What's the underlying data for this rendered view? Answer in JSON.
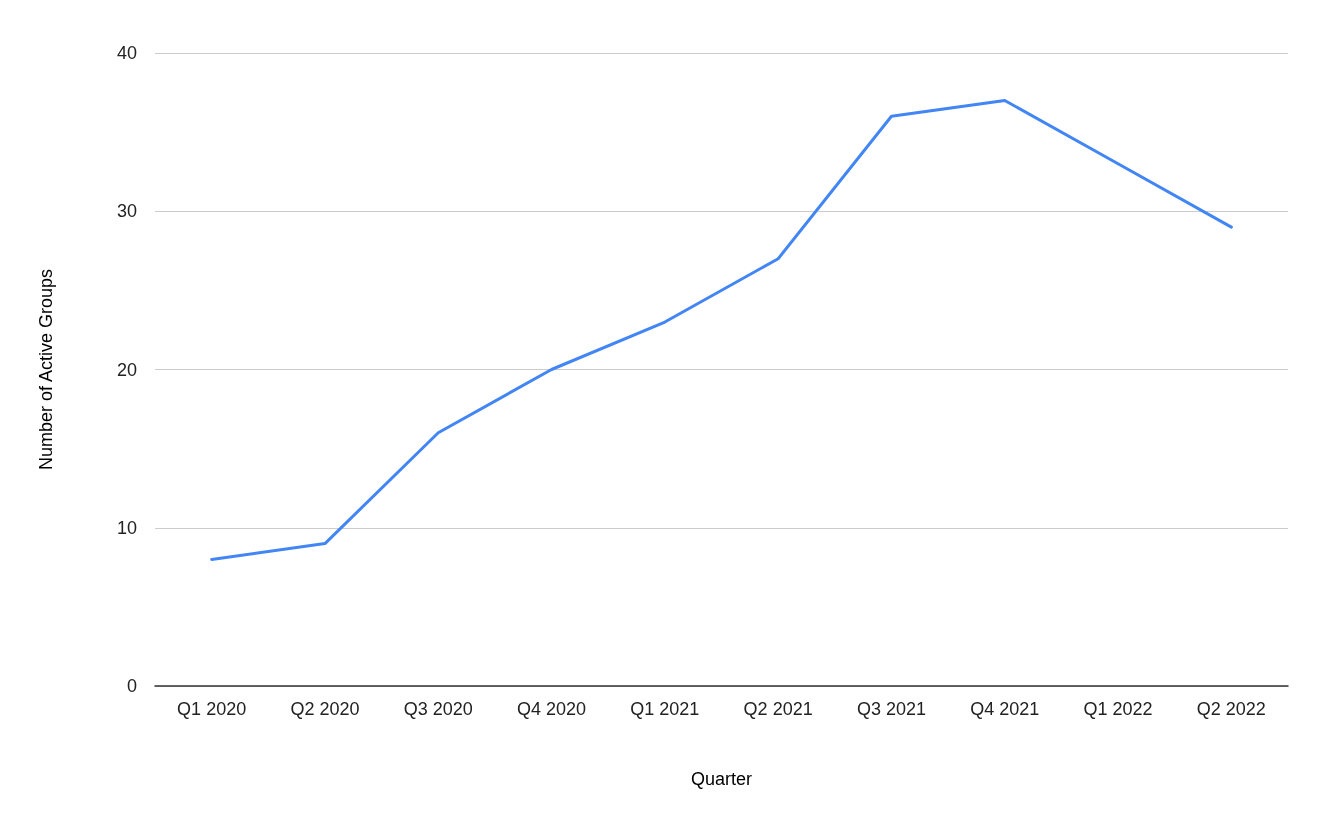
{
  "chart_data": {
    "type": "line",
    "xlabel": "Quarter",
    "ylabel": "Number of Active Groups",
    "categories": [
      "Q1 2020",
      "Q2 2020",
      "Q3 2020",
      "Q4 2020",
      "Q1 2021",
      "Q2 2021",
      "Q3 2021",
      "Q4 2021",
      "Q1 2022",
      "Q2 2022"
    ],
    "series": [
      {
        "color": "#4285f4",
        "values": [
          8,
          9,
          16,
          20,
          23,
          27,
          36,
          37,
          33,
          29
        ]
      }
    ],
    "ylim": [
      0,
      40
    ],
    "yticks": [
      0,
      10,
      20,
      30,
      40
    ],
    "grid": "y",
    "marker": "none",
    "line_style": "solid"
  }
}
